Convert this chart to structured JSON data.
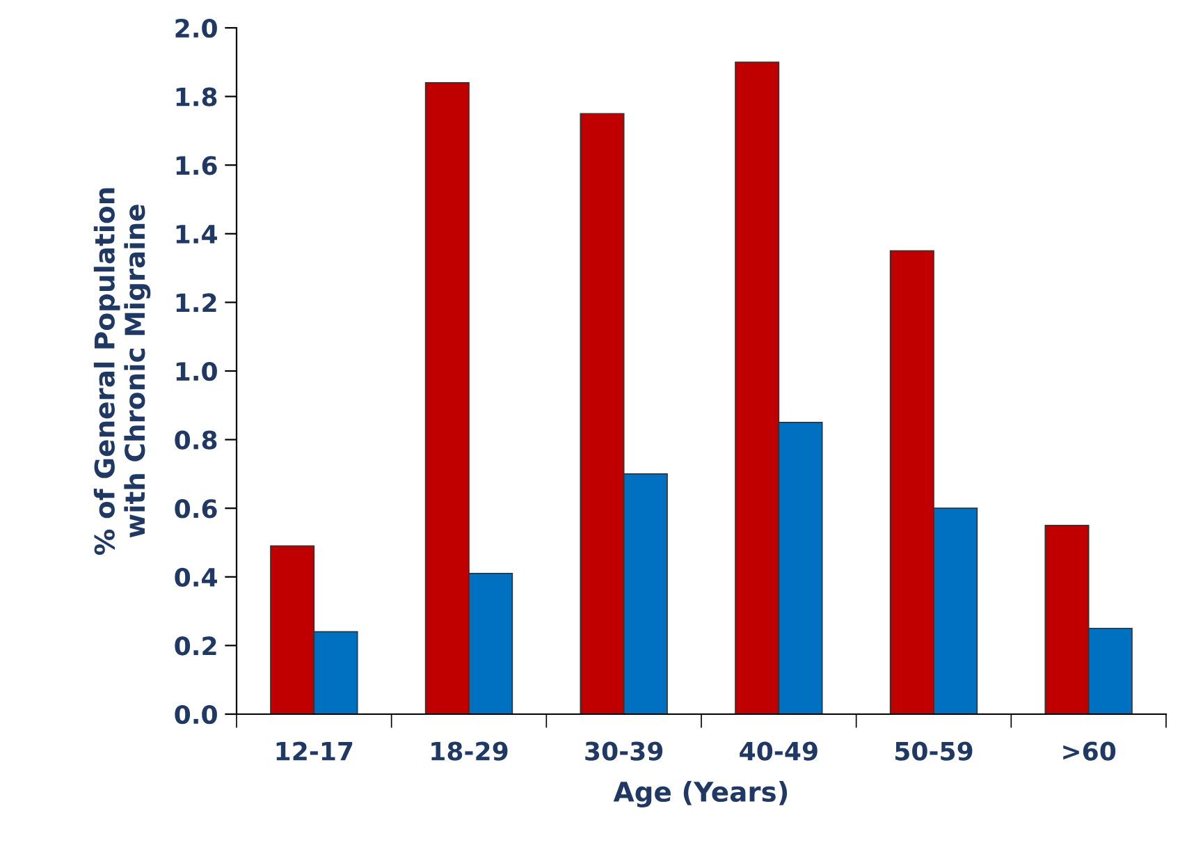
{
  "chart_data": {
    "type": "bar",
    "xlabel": "Age (Years)",
    "ylabel": "% of General Population\nwith Chronic Migraine",
    "categories": [
      "12-17",
      "18-29",
      "30-39",
      "40-49",
      "50-59",
      ">60"
    ],
    "series": [
      {
        "color": "#c00000",
        "values": [
          0.49,
          1.84,
          1.75,
          1.9,
          1.35,
          0.55
        ]
      },
      {
        "color": "#0070c0",
        "values": [
          0.24,
          0.41,
          0.7,
          0.85,
          0.6,
          0.25
        ]
      }
    ],
    "ylim": [
      0,
      2
    ],
    "yticks": [
      {
        "value": 0,
        "label": "0.0"
      },
      {
        "value": 0.2,
        "label": "0.2"
      },
      {
        "value": 0.4,
        "label": "0.4"
      },
      {
        "value": 0.6,
        "label": "0.6"
      },
      {
        "value": 0.8,
        "label": "0.8"
      },
      {
        "value": 1,
        "label": "1.0"
      },
      {
        "value": 1.2,
        "label": "1.2"
      },
      {
        "value": 1.4,
        "label": "1.4"
      },
      {
        "value": 1.6,
        "label": "1.6"
      },
      {
        "value": 1.8,
        "label": "1.8"
      },
      {
        "value": 2,
        "label": "2.0"
      }
    ],
    "grid": false,
    "legend": false
  }
}
